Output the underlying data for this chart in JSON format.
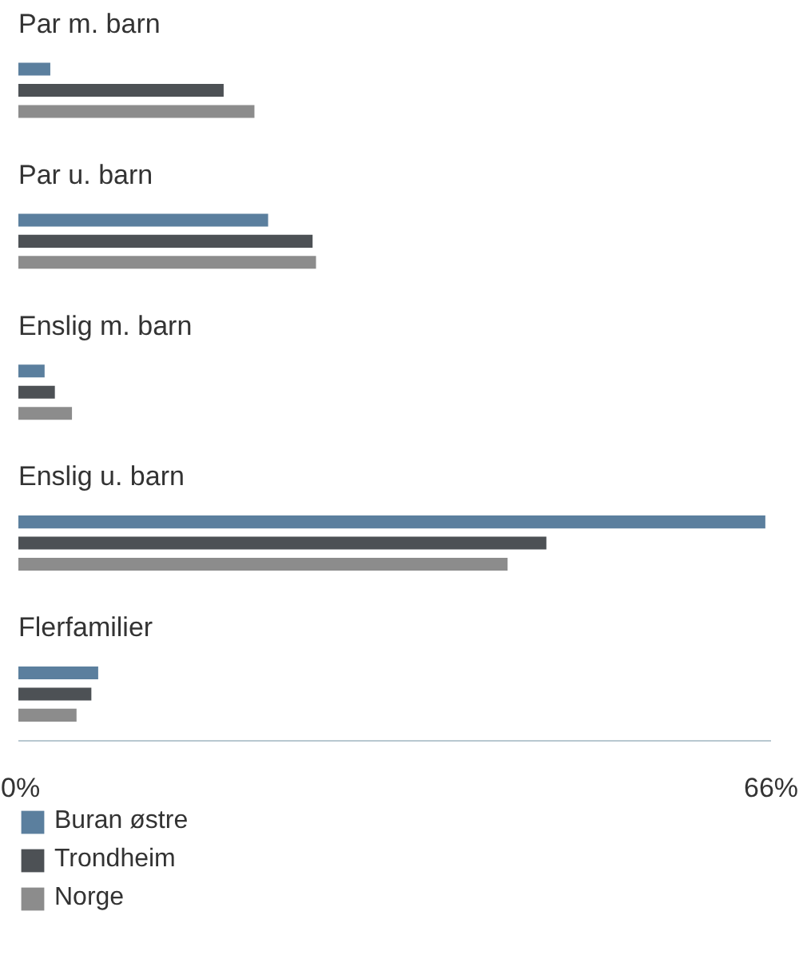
{
  "chart_data": {
    "type": "bar",
    "orientation": "horizontal",
    "categories": [
      "Par m. barn",
      "Par u. barn",
      "Enslig m. barn",
      "Enslig u. barn",
      "Flerfamilier"
    ],
    "series": [
      {
        "name": "Buran østre",
        "color": "#5b7f9e",
        "values": [
          2.8,
          21.9,
          2.3,
          65.5,
          7.0
        ]
      },
      {
        "name": "Trondheim",
        "color": "#4d5155",
        "values": [
          18.0,
          25.8,
          3.2,
          46.3,
          6.4
        ]
      },
      {
        "name": "Norge",
        "color": "#8c8c8c",
        "values": [
          20.7,
          26.1,
          4.7,
          42.9,
          5.1
        ]
      }
    ],
    "xlim": [
      0,
      66
    ],
    "xticks": [
      {
        "value": 0,
        "label": "0%"
      },
      {
        "value": 66,
        "label": "66%"
      }
    ],
    "legend": "bottom",
    "grid": false
  }
}
